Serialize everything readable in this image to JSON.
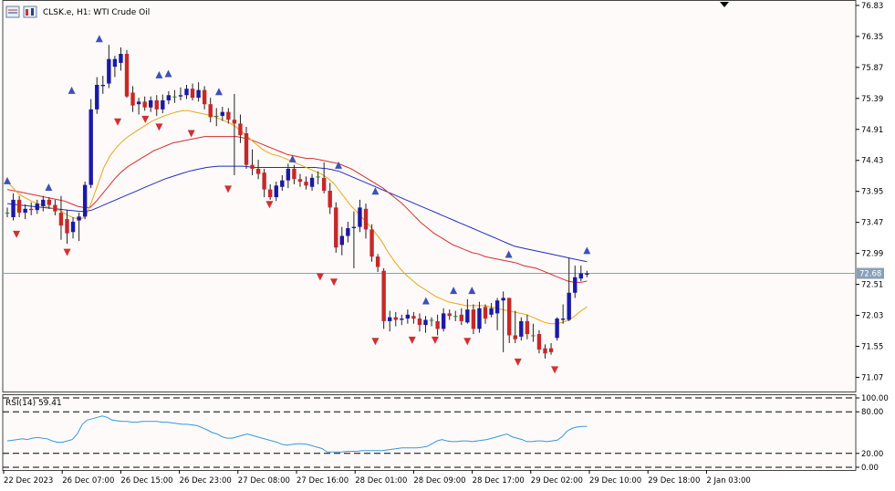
{
  "header": {
    "title": "CLSK.e, H1:  WTI Crude Oil"
  },
  "indicator": {
    "label": "RSI(14) 59.41"
  },
  "price_axis": {
    "ticks": [
      "76.83",
      "76.35",
      "75.87",
      "75.39",
      "74.91",
      "74.43",
      "73.95",
      "73.47",
      "72.99",
      "72.51",
      "72.03",
      "71.55",
      "71.07"
    ],
    "current_price": "72.68"
  },
  "rsi_axis": {
    "ticks": [
      "100.00",
      "80.00",
      "20.00",
      "0.00"
    ]
  },
  "time_axis": {
    "labels": [
      "22 Dec 2023",
      "26 Dec 07:00",
      "26 Dec 15:00",
      "26 Dec 23:00",
      "27 Dec 08:00",
      "27 Dec 16:00",
      "28 Dec 01:00",
      "28 Dec 09:00",
      "28 Dec 17:00",
      "29 Dec 02:00",
      "29 Dec 10:00",
      "29 Dec 18:00",
      "2 Jan 03:00"
    ]
  },
  "colors": {
    "bull": "#1a1aa6",
    "bear": "#c62828",
    "doji": "#2e7d32",
    "ma_fast": "#e6a817",
    "ma_mid": "#d32f2f",
    "ma_slow": "#1f2fbf",
    "rsi": "#3399dd",
    "price_line": "#8aa0b8",
    "frac_up": "#3f51b5",
    "frac_down": "#d32f2f"
  },
  "chart_data": {
    "type": "candlestick",
    "title": "CLSK.e, H1:  WTI Crude Oil",
    "ylim": [
      70.85,
      76.9
    ],
    "candles": [
      {
        "o": 73.62,
        "h": 73.7,
        "l": 73.55,
        "c": 73.62
      },
      {
        "o": 73.55,
        "h": 73.92,
        "l": 73.5,
        "c": 73.82
      },
      {
        "o": 73.82,
        "h": 73.88,
        "l": 73.55,
        "c": 73.62
      },
      {
        "o": 73.62,
        "h": 73.75,
        "l": 73.52,
        "c": 73.68
      },
      {
        "o": 73.68,
        "h": 73.78,
        "l": 73.58,
        "c": 73.66
      },
      {
        "o": 73.66,
        "h": 73.82,
        "l": 73.6,
        "c": 73.76
      },
      {
        "o": 73.72,
        "h": 73.88,
        "l": 73.64,
        "c": 73.82
      },
      {
        "o": 73.82,
        "h": 73.86,
        "l": 73.68,
        "c": 73.74
      },
      {
        "o": 73.74,
        "h": 73.82,
        "l": 73.58,
        "c": 73.64
      },
      {
        "o": 73.62,
        "h": 73.88,
        "l": 73.2,
        "c": 73.42
      },
      {
        "o": 73.52,
        "h": 73.66,
        "l": 73.14,
        "c": 73.3
      },
      {
        "o": 73.32,
        "h": 73.55,
        "l": 73.22,
        "c": 73.48
      },
      {
        "o": 73.5,
        "h": 73.62,
        "l": 73.18,
        "c": 73.56
      },
      {
        "o": 73.56,
        "h": 74.1,
        "l": 73.52,
        "c": 74.05
      },
      {
        "o": 74.05,
        "h": 75.38,
        "l": 74.0,
        "c": 75.22
      },
      {
        "o": 75.22,
        "h": 75.72,
        "l": 75.15,
        "c": 75.6
      },
      {
        "o": 75.58,
        "h": 75.74,
        "l": 75.46,
        "c": 75.6
      },
      {
        "o": 75.62,
        "h": 76.22,
        "l": 75.55,
        "c": 76.0
      },
      {
        "o": 75.88,
        "h": 76.05,
        "l": 75.72,
        "c": 76.0
      },
      {
        "o": 75.94,
        "h": 76.18,
        "l": 75.82,
        "c": 76.08
      },
      {
        "o": 76.08,
        "h": 76.14,
        "l": 75.4,
        "c": 75.42
      },
      {
        "o": 75.48,
        "h": 75.58,
        "l": 75.18,
        "c": 75.28
      },
      {
        "o": 75.3,
        "h": 75.4,
        "l": 75.14,
        "c": 75.34
      },
      {
        "o": 75.34,
        "h": 75.42,
        "l": 75.2,
        "c": 75.25
      },
      {
        "o": 75.25,
        "h": 75.42,
        "l": 75.18,
        "c": 75.36
      },
      {
        "o": 75.36,
        "h": 75.44,
        "l": 75.12,
        "c": 75.22
      },
      {
        "o": 75.22,
        "h": 75.45,
        "l": 75.16,
        "c": 75.36
      },
      {
        "o": 75.36,
        "h": 75.5,
        "l": 75.3,
        "c": 75.44
      },
      {
        "o": 75.42,
        "h": 75.52,
        "l": 75.32,
        "c": 75.42
      },
      {
        "o": 75.42,
        "h": 75.56,
        "l": 75.36,
        "c": 75.44
      },
      {
        "o": 75.44,
        "h": 75.6,
        "l": 75.38,
        "c": 75.54
      },
      {
        "o": 75.54,
        "h": 75.62,
        "l": 75.36,
        "c": 75.4
      },
      {
        "o": 75.4,
        "h": 75.64,
        "l": 75.34,
        "c": 75.52
      },
      {
        "o": 75.52,
        "h": 75.58,
        "l": 75.22,
        "c": 75.3
      },
      {
        "o": 75.3,
        "h": 75.4,
        "l": 75.02,
        "c": 75.1
      },
      {
        "o": 75.12,
        "h": 75.24,
        "l": 74.96,
        "c": 75.12
      },
      {
        "o": 75.12,
        "h": 75.26,
        "l": 75.04,
        "c": 75.18
      },
      {
        "o": 75.18,
        "h": 75.24,
        "l": 75.0,
        "c": 75.06
      },
      {
        "o": 75.06,
        "h": 75.46,
        "l": 74.2,
        "c": 75.0
      },
      {
        "o": 75.0,
        "h": 75.14,
        "l": 74.7,
        "c": 74.82
      },
      {
        "o": 74.85,
        "h": 74.95,
        "l": 74.3,
        "c": 74.36
      },
      {
        "o": 74.36,
        "h": 74.6,
        "l": 74.2,
        "c": 74.3
      },
      {
        "o": 74.3,
        "h": 74.44,
        "l": 74.14,
        "c": 74.22
      },
      {
        "o": 74.24,
        "h": 74.3,
        "l": 73.86,
        "c": 73.98
      },
      {
        "o": 73.98,
        "h": 74.06,
        "l": 73.82,
        "c": 73.86
      },
      {
        "o": 73.86,
        "h": 74.1,
        "l": 73.8,
        "c": 74.04
      },
      {
        "o": 74.02,
        "h": 74.2,
        "l": 73.96,
        "c": 74.12
      },
      {
        "o": 74.12,
        "h": 74.38,
        "l": 74.0,
        "c": 74.3
      },
      {
        "o": 74.3,
        "h": 74.36,
        "l": 74.06,
        "c": 74.14
      },
      {
        "o": 74.14,
        "h": 74.22,
        "l": 74.02,
        "c": 74.1
      },
      {
        "o": 74.1,
        "h": 74.18,
        "l": 73.98,
        "c": 74.04
      },
      {
        "o": 74.02,
        "h": 74.22,
        "l": 73.96,
        "c": 74.16
      },
      {
        "o": 74.18,
        "h": 74.26,
        "l": 74.06,
        "c": 74.18
      },
      {
        "o": 74.16,
        "h": 74.4,
        "l": 73.92,
        "c": 73.96
      },
      {
        "o": 73.96,
        "h": 74.08,
        "l": 73.6,
        "c": 73.7
      },
      {
        "o": 73.7,
        "h": 73.78,
        "l": 73.0,
        "c": 73.08
      },
      {
        "o": 73.12,
        "h": 73.4,
        "l": 72.96,
        "c": 73.26
      },
      {
        "o": 73.26,
        "h": 73.48,
        "l": 73.16,
        "c": 73.38
      },
      {
        "o": 73.38,
        "h": 73.64,
        "l": 72.76,
        "c": 73.4
      },
      {
        "o": 73.4,
        "h": 73.82,
        "l": 73.32,
        "c": 73.7
      },
      {
        "o": 73.68,
        "h": 73.76,
        "l": 73.22,
        "c": 73.36
      },
      {
        "o": 73.36,
        "h": 73.44,
        "l": 72.86,
        "c": 72.94
      },
      {
        "o": 72.94,
        "h": 72.98,
        "l": 72.7,
        "c": 72.78
      },
      {
        "o": 72.72,
        "h": 72.76,
        "l": 71.82,
        "c": 71.94
      },
      {
        "o": 71.94,
        "h": 72.1,
        "l": 71.78,
        "c": 72.0
      },
      {
        "o": 72.0,
        "h": 72.08,
        "l": 71.86,
        "c": 71.96
      },
      {
        "o": 71.96,
        "h": 72.04,
        "l": 71.88,
        "c": 71.98
      },
      {
        "o": 71.98,
        "h": 72.12,
        "l": 71.9,
        "c": 72.04
      },
      {
        "o": 72.02,
        "h": 72.08,
        "l": 71.9,
        "c": 71.98
      },
      {
        "o": 71.98,
        "h": 72.06,
        "l": 71.78,
        "c": 71.88
      },
      {
        "o": 71.88,
        "h": 72.02,
        "l": 71.76,
        "c": 71.96
      },
      {
        "o": 71.96,
        "h": 72.0,
        "l": 71.86,
        "c": 71.96
      },
      {
        "o": 71.94,
        "h": 72.04,
        "l": 71.72,
        "c": 71.82
      },
      {
        "o": 71.82,
        "h": 72.14,
        "l": 71.78,
        "c": 72.06
      },
      {
        "o": 72.06,
        "h": 72.12,
        "l": 71.96,
        "c": 72.02
      },
      {
        "o": 72.02,
        "h": 72.1,
        "l": 71.94,
        "c": 72.02
      },
      {
        "o": 72.04,
        "h": 72.14,
        "l": 71.88,
        "c": 71.94
      },
      {
        "o": 71.92,
        "h": 72.28,
        "l": 71.9,
        "c": 72.12
      },
      {
        "o": 72.12,
        "h": 72.2,
        "l": 71.74,
        "c": 71.82
      },
      {
        "o": 71.82,
        "h": 72.24,
        "l": 71.76,
        "c": 72.14
      },
      {
        "o": 72.16,
        "h": 72.2,
        "l": 71.9,
        "c": 71.98
      },
      {
        "o": 72.04,
        "h": 72.22,
        "l": 72.0,
        "c": 72.14
      },
      {
        "o": 72.06,
        "h": 72.3,
        "l": 71.8,
        "c": 72.26
      },
      {
        "o": 72.26,
        "h": 72.4,
        "l": 71.46,
        "c": 72.3
      },
      {
        "o": 72.3,
        "h": 72.3,
        "l": 71.6,
        "c": 71.72
      },
      {
        "o": 71.72,
        "h": 72.1,
        "l": 71.6,
        "c": 71.66
      },
      {
        "o": 71.7,
        "h": 72.0,
        "l": 71.64,
        "c": 71.94
      },
      {
        "o": 71.94,
        "h": 72.04,
        "l": 71.66,
        "c": 71.74
      },
      {
        "o": 71.72,
        "h": 71.9,
        "l": 71.62,
        "c": 71.72
      },
      {
        "o": 71.74,
        "h": 71.8,
        "l": 71.44,
        "c": 71.5
      },
      {
        "o": 71.52,
        "h": 71.58,
        "l": 71.36,
        "c": 71.44
      },
      {
        "o": 71.52,
        "h": 71.6,
        "l": 71.42,
        "c": 71.46
      },
      {
        "o": 71.68,
        "h": 72.0,
        "l": 71.64,
        "c": 71.98
      },
      {
        "o": 71.96,
        "h": 72.2,
        "l": 71.9,
        "c": 71.98
      },
      {
        "o": 71.96,
        "h": 72.92,
        "l": 71.94,
        "c": 72.38
      },
      {
        "o": 72.38,
        "h": 72.8,
        "l": 72.3,
        "c": 72.62
      },
      {
        "o": 72.6,
        "h": 72.8,
        "l": 72.56,
        "c": 72.68
      },
      {
        "o": 72.66,
        "h": 72.72,
        "l": 72.62,
        "c": 72.68
      }
    ],
    "ma_fast": [
      74.1,
      74.0,
      73.9,
      73.85,
      73.8,
      73.76,
      73.73,
      73.7,
      73.68,
      73.64,
      73.58,
      73.54,
      73.52,
      73.56,
      73.8,
      74.06,
      74.32,
      74.5,
      74.62,
      74.72,
      74.8,
      74.86,
      74.92,
      74.98,
      75.04,
      75.08,
      75.12,
      75.15,
      75.18,
      75.2,
      75.2,
      75.18,
      75.16,
      75.14,
      75.12,
      75.08,
      75.04,
      75.0,
      74.94,
      74.86,
      74.78,
      74.7,
      74.62,
      74.56,
      74.52,
      74.5,
      74.46,
      74.42,
      74.38,
      74.34,
      74.3,
      74.26,
      74.22,
      74.16,
      74.08,
      73.96,
      73.84,
      73.72,
      73.62,
      73.52,
      73.42,
      73.3,
      73.18,
      73.02,
      72.88,
      72.76,
      72.66,
      72.58,
      72.5,
      72.44,
      72.38,
      72.32,
      72.28,
      72.24,
      72.22,
      72.2,
      72.18,
      72.18,
      72.18,
      72.18,
      72.16,
      72.14,
      72.12,
      72.1,
      72.08,
      72.06,
      72.04,
      72.0,
      71.96,
      71.92,
      71.9,
      71.9,
      71.92,
      71.96,
      72.02,
      72.1,
      72.16
    ],
    "ma_mid": [
      73.98,
      73.96,
      73.94,
      73.92,
      73.9,
      73.88,
      73.86,
      73.84,
      73.82,
      73.8,
      73.76,
      73.72,
      73.7,
      73.7,
      73.8,
      73.92,
      74.04,
      74.16,
      74.26,
      74.34,
      74.4,
      74.46,
      74.52,
      74.58,
      74.62,
      74.66,
      74.7,
      74.72,
      74.74,
      74.76,
      74.78,
      74.8,
      74.8,
      74.8,
      74.8,
      74.8,
      74.8,
      74.78,
      74.76,
      74.72,
      74.68,
      74.64,
      74.6,
      74.56,
      74.52,
      74.5,
      74.48,
      74.46,
      74.46,
      74.44,
      74.42,
      74.4,
      74.38,
      74.34,
      74.3,
      74.24,
      74.18,
      74.12,
      74.06,
      74.0,
      73.92,
      73.84,
      73.76,
      73.66,
      73.56,
      73.46,
      73.38,
      73.3,
      73.24,
      73.18,
      73.12,
      73.08,
      73.04,
      73.0,
      72.98,
      72.94,
      72.92,
      72.9,
      72.88,
      72.86,
      72.84,
      72.8,
      72.78,
      72.76,
      72.72,
      72.68,
      72.64,
      72.6,
      72.56,
      72.54,
      72.54,
      72.56
    ],
    "ma_slow": [
      73.76,
      73.75,
      73.74,
      73.73,
      73.72,
      73.71,
      73.7,
      73.69,
      73.68,
      73.67,
      73.66,
      73.65,
      73.64,
      73.64,
      73.66,
      73.7,
      73.74,
      73.78,
      73.82,
      73.86,
      73.9,
      73.94,
      73.98,
      74.02,
      74.06,
      74.1,
      74.14,
      74.17,
      74.2,
      74.23,
      74.26,
      74.28,
      74.3,
      74.32,
      74.33,
      74.34,
      74.34,
      74.34,
      74.34,
      74.34,
      74.33,
      74.32,
      74.32,
      74.32,
      74.32,
      74.32,
      74.32,
      74.32,
      74.32,
      74.32,
      74.32,
      74.32,
      74.31,
      74.3,
      74.28,
      74.26,
      74.22,
      74.18,
      74.14,
      74.1,
      74.06,
      74.02,
      73.98,
      73.94,
      73.9,
      73.86,
      73.82,
      73.78,
      73.74,
      73.7,
      73.66,
      73.62,
      73.58,
      73.54,
      73.5,
      73.46,
      73.42,
      73.38,
      73.34,
      73.3,
      73.26,
      73.22,
      73.18,
      73.14,
      73.1,
      73.08,
      73.06,
      73.04,
      73.02,
      73.0,
      72.98,
      72.96,
      72.94,
      72.92,
      72.9,
      72.88,
      72.86
    ],
    "fractals_up": [
      [
        0,
        74.06
      ],
      [
        9,
        73.96
      ],
      [
        14,
        75.46
      ],
      [
        20,
        76.26
      ],
      [
        33,
        75.7
      ],
      [
        35,
        75.72
      ],
      [
        46,
        75.44
      ],
      [
        62,
        74.4
      ],
      [
        72,
        74.3
      ],
      [
        80,
        73.9
      ],
      [
        91,
        72.2
      ],
      [
        97,
        72.36
      ],
      [
        101,
        72.36
      ],
      [
        109,
        72.92
      ],
      [
        126,
        72.98
      ]
    ],
    "fractals_down": [
      [
        2,
        73.34
      ],
      [
        13,
        73.06
      ],
      [
        24,
        75.08
      ],
      [
        30,
        75.12
      ],
      [
        33,
        75.0
      ],
      [
        40,
        74.9
      ],
      [
        48,
        74.04
      ],
      [
        57,
        73.8
      ],
      [
        68,
        72.68
      ],
      [
        71,
        72.6
      ],
      [
        80,
        71.68
      ],
      [
        88,
        71.7
      ],
      [
        93,
        71.7
      ],
      [
        100,
        71.68
      ],
      [
        111,
        71.36
      ],
      [
        119,
        71.24
      ]
    ],
    "current_price": 72.68,
    "rsi": {
      "name": "RSI(14)",
      "value": 59.41,
      "ylim": [
        0,
        100
      ],
      "levels": [
        80,
        20
      ],
      "values": [
        38,
        39,
        40,
        41,
        40,
        42,
        43,
        42,
        41,
        38,
        36,
        36,
        38,
        40,
        48,
        62,
        68,
        70,
        72,
        74,
        72,
        68,
        67,
        66,
        66,
        65,
        65,
        66,
        66,
        66,
        66,
        65,
        65,
        64,
        63,
        62,
        62,
        61,
        60,
        57,
        54,
        50,
        48,
        44,
        42,
        42,
        44,
        46,
        48,
        46,
        44,
        42,
        40,
        38,
        36,
        33,
        32,
        33,
        34,
        34,
        33,
        31,
        29,
        27,
        22,
        22,
        22,
        22,
        23,
        23,
        23,
        24,
        24,
        24,
        24,
        24,
        25,
        26,
        27,
        28,
        28,
        28,
        28,
        29,
        30,
        34,
        38,
        40,
        38,
        37,
        37,
        38,
        38,
        37,
        38,
        39,
        40,
        42,
        44,
        46,
        48,
        44,
        42,
        40,
        37,
        37,
        38,
        38,
        37,
        38,
        39,
        44,
        52,
        56,
        58,
        59,
        59
      ]
    }
  }
}
